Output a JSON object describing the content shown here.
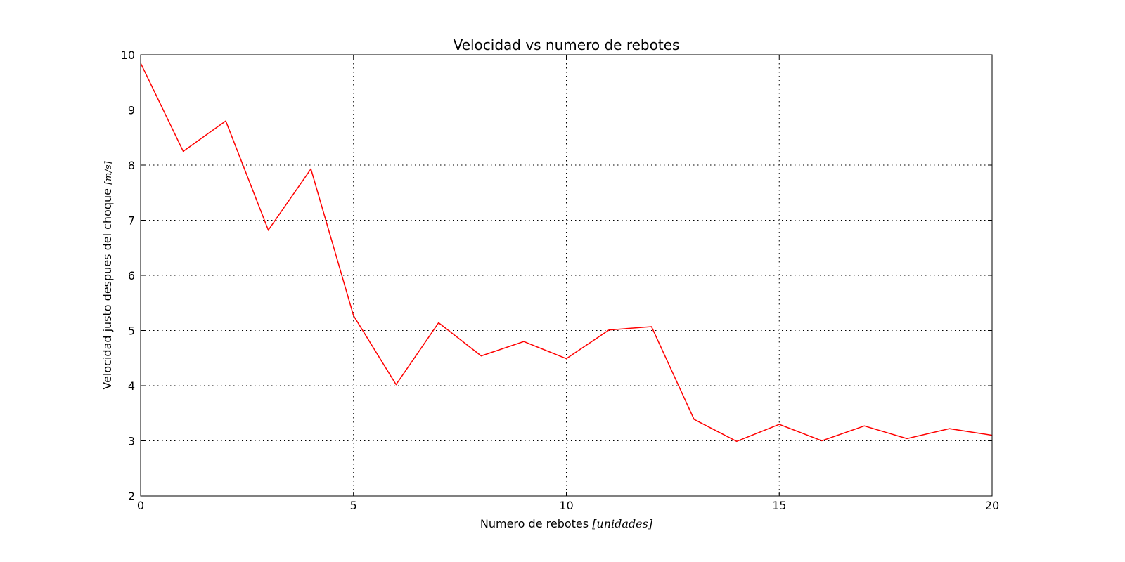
{
  "chart_data": {
    "type": "line",
    "title": "Velocidad vs numero de rebotes",
    "xlabel": "Numero de rebotes",
    "xlabel_unit": "[unidades]",
    "ylabel": "Velocidad justo despues del choque",
    "ylabel_unit": "[m/s]",
    "xlim": [
      0,
      20
    ],
    "ylim": [
      2,
      10
    ],
    "xticks": [
      0,
      5,
      10,
      15,
      20
    ],
    "yticks": [
      2,
      3,
      4,
      5,
      6,
      7,
      8,
      9,
      10
    ],
    "grid": true,
    "line_color": "#ff0000",
    "x": [
      0,
      1,
      2,
      3,
      4,
      5,
      6,
      7,
      8,
      9,
      10,
      11,
      12,
      13,
      14,
      15,
      16,
      17,
      18,
      19,
      20
    ],
    "y": [
      9.85,
      8.25,
      8.8,
      6.82,
      7.93,
      5.27,
      4.02,
      5.14,
      4.54,
      4.8,
      4.49,
      5.01,
      5.07,
      3.39,
      2.99,
      3.3,
      3.0,
      3.27,
      3.04,
      3.22,
      3.1
    ]
  }
}
